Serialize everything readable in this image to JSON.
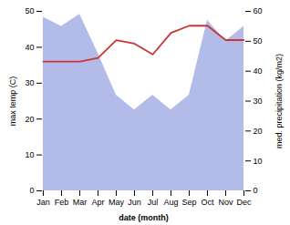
{
  "chart_data": {
    "type": "line",
    "xlabel": "date (month)",
    "ylabel": "max temp (C)",
    "y2label": "med. precipitation (kg/m2)",
    "categories": [
      "Jan",
      "Feb",
      "Mar",
      "Apr",
      "May",
      "Jun",
      "Jul",
      "Aug",
      "Sep",
      "Oct",
      "Nov",
      "Dec"
    ],
    "series": [
      {
        "type": "area",
        "axis": "y2",
        "color": "#b3bce8",
        "values": [
          58,
          55,
          59,
          46,
          32,
          27,
          32,
          27,
          32,
          57,
          50,
          55
        ]
      },
      {
        "type": "line",
        "color": "#cc3333",
        "values": [
          36,
          36,
          36,
          37,
          42,
          41,
          38,
          44,
          46,
          46,
          42,
          42
        ]
      }
    ],
    "ylim": [
      0,
      50
    ],
    "yticks": [
      0,
      10,
      20,
      30,
      40,
      50
    ],
    "y2lim": [
      0,
      60
    ],
    "y2ticks": [
      0,
      10,
      20,
      30,
      40,
      50,
      60
    ],
    "grid": false
  }
}
